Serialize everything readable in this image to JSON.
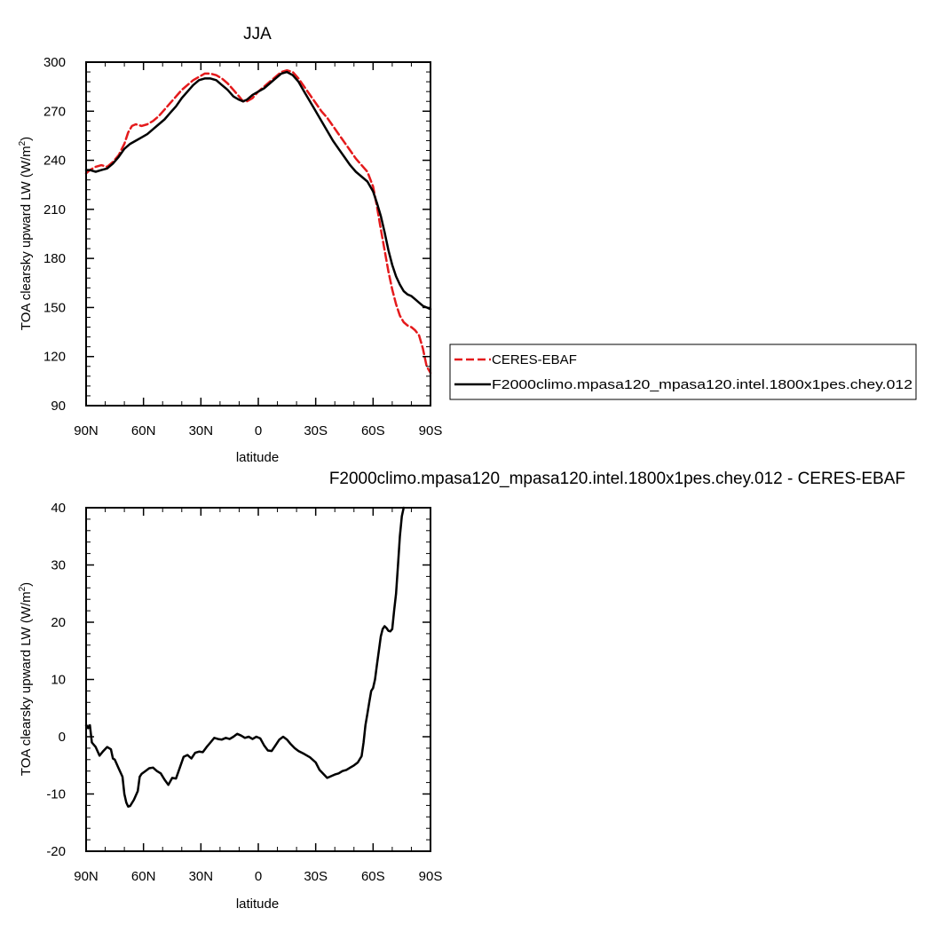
{
  "chart_data": [
    {
      "type": "line",
      "title": "JJA",
      "xlabel": "latitude",
      "ylabel": "TOA clearsky upward LW (W/m²)",
      "ylabel_parts": {
        "main": "TOA clearsky upward LW (W/m",
        "sup": "2",
        "close": ")"
      },
      "xlim": [
        90,
        -90
      ],
      "ylim": [
        90,
        300
      ],
      "x_ticks": [
        {
          "value": 90,
          "label": "90N"
        },
        {
          "value": 60,
          "label": "60N"
        },
        {
          "value": 30,
          "label": "30N"
        },
        {
          "value": 0,
          "label": "0"
        },
        {
          "value": -30,
          "label": "30S"
        },
        {
          "value": -60,
          "label": "60S"
        },
        {
          "value": -90,
          "label": "90S"
        }
      ],
      "y_ticks": [
        90,
        120,
        150,
        180,
        210,
        240,
        270,
        300
      ],
      "grid": false,
      "legend_position": "right",
      "series": [
        {
          "name": "CERES-EBAF",
          "color": "#e41a1c",
          "dash": "dashed",
          "points": [
            [
              90,
              232
            ],
            [
              88,
              234
            ],
            [
              85,
              236
            ],
            [
              82,
              237
            ],
            [
              79,
              236
            ],
            [
              76,
              239
            ],
            [
              73,
              243
            ],
            [
              70,
              250
            ],
            [
              68,
              257
            ],
            [
              66,
              261
            ],
            [
              64,
              262
            ],
            [
              61,
              261
            ],
            [
              58,
              262
            ],
            [
              55,
              264
            ],
            [
              52,
              267
            ],
            [
              49,
              271
            ],
            [
              46,
              275
            ],
            [
              43,
              279
            ],
            [
              40,
              283
            ],
            [
              37,
              286
            ],
            [
              34,
              289
            ],
            [
              31,
              291
            ],
            [
              28,
              293
            ],
            [
              25,
              293
            ],
            [
              22,
              292
            ],
            [
              19,
              290
            ],
            [
              16,
              287
            ],
            [
              13,
              283
            ],
            [
              10,
              279
            ],
            [
              8,
              276
            ],
            [
              6,
              276
            ],
            [
              3,
              278
            ],
            [
              0,
              282
            ],
            [
              -3,
              285
            ],
            [
              -6,
              288
            ],
            [
              -9,
              291
            ],
            [
              -12,
              294
            ],
            [
              -15,
              295
            ],
            [
              -18,
              294
            ],
            [
              -21,
              290
            ],
            [
              -24,
              285
            ],
            [
              -27,
              280
            ],
            [
              -30,
              275
            ],
            [
              -33,
              270
            ],
            [
              -36,
              266
            ],
            [
              -39,
              261
            ],
            [
              -42,
              256
            ],
            [
              -45,
              251
            ],
            [
              -48,
              246
            ],
            [
              -51,
              241
            ],
            [
              -54,
              237
            ],
            [
              -57,
              233
            ],
            [
              -60,
              224
            ],
            [
              -62,
              212
            ],
            [
              -64,
              198
            ],
            [
              -66,
              185
            ],
            [
              -68,
              172
            ],
            [
              -70,
              161
            ],
            [
              -72,
              152
            ],
            [
              -74,
              145
            ],
            [
              -76,
              141
            ],
            [
              -78,
              139
            ],
            [
              -80,
              138
            ],
            [
              -82,
              136
            ],
            [
              -84,
              133
            ],
            [
              -86,
              125
            ],
            [
              -88,
              114
            ],
            [
              -90,
              110
            ]
          ]
        },
        {
          "name": "F2000climo.mpasa120_mpasa120.intel.1800x1pes.chey.012",
          "color": "#000000",
          "dash": "solid",
          "points": [
            [
              90,
              234
            ],
            [
              88,
              234
            ],
            [
              85,
              233
            ],
            [
              82,
              234
            ],
            [
              79,
              235
            ],
            [
              76,
              238
            ],
            [
              73,
              242
            ],
            [
              70,
              247
            ],
            [
              67,
              250
            ],
            [
              64,
              252
            ],
            [
              61,
              254
            ],
            [
              58,
              256
            ],
            [
              55,
              259
            ],
            [
              52,
              262
            ],
            [
              49,
              265
            ],
            [
              46,
              269
            ],
            [
              43,
              273
            ],
            [
              40,
              278
            ],
            [
              37,
              282
            ],
            [
              34,
              286
            ],
            [
              31,
              289
            ],
            [
              28,
              290
            ],
            [
              25,
              290
            ],
            [
              22,
              289
            ],
            [
              19,
              286
            ],
            [
              16,
              283
            ],
            [
              13,
              279
            ],
            [
              10,
              277
            ],
            [
              8,
              276
            ],
            [
              6,
              277
            ],
            [
              3,
              280
            ],
            [
              0,
              282
            ],
            [
              -3,
              284
            ],
            [
              -6,
              287
            ],
            [
              -9,
              290
            ],
            [
              -12,
              293
            ],
            [
              -15,
              294
            ],
            [
              -18,
              292
            ],
            [
              -21,
              288
            ],
            [
              -24,
              282
            ],
            [
              -27,
              276
            ],
            [
              -30,
              270
            ],
            [
              -33,
              264
            ],
            [
              -36,
              258
            ],
            [
              -39,
              252
            ],
            [
              -42,
              247
            ],
            [
              -45,
              242
            ],
            [
              -48,
              237
            ],
            [
              -51,
              233
            ],
            [
              -54,
              230
            ],
            [
              -57,
              227
            ],
            [
              -60,
              221
            ],
            [
              -62,
              214
            ],
            [
              -64,
              206
            ],
            [
              -66,
              196
            ],
            [
              -68,
              185
            ],
            [
              -70,
              176
            ],
            [
              -72,
              169
            ],
            [
              -74,
              164
            ],
            [
              -76,
              160
            ],
            [
              -78,
              158
            ],
            [
              -80,
              157
            ],
            [
              -82,
              155
            ],
            [
              -84,
              153
            ],
            [
              -86,
              151
            ],
            [
              -88,
              150
            ],
            [
              -90,
              149
            ]
          ]
        }
      ]
    },
    {
      "type": "line",
      "title": "F2000climo.mpasa120_mpasa120.intel.1800x1pes.chey.012 - CERES-EBAF",
      "xlabel": "latitude",
      "ylabel": "TOA clearsky upward LW (W/m²)",
      "ylabel_parts": {
        "main": "TOA clearsky upward LW (W/m",
        "sup": "2",
        "close": ")"
      },
      "xlim": [
        90,
        -90
      ],
      "ylim": [
        -20,
        40
      ],
      "x_ticks": [
        {
          "value": 90,
          "label": "90N"
        },
        {
          "value": 60,
          "label": "60N"
        },
        {
          "value": 30,
          "label": "30N"
        },
        {
          "value": 0,
          "label": "0"
        },
        {
          "value": -30,
          "label": "30S"
        },
        {
          "value": -60,
          "label": "60S"
        },
        {
          "value": -90,
          "label": "90S"
        }
      ],
      "y_ticks": [
        -20,
        -10,
        0,
        10,
        20,
        30,
        40
      ],
      "grid": false,
      "series": [
        {
          "name": "",
          "color": "#000000",
          "dash": "solid",
          "points": [
            [
              90,
              2
            ],
            [
              89,
              1.5
            ],
            [
              88,
              2
            ],
            [
              87,
              -1
            ],
            [
              85,
              -1.8
            ],
            [
              83,
              -3.3
            ],
            [
              81,
              -2.5
            ],
            [
              79,
              -1.8
            ],
            [
              77,
              -2.2
            ],
            [
              76,
              -3.8
            ],
            [
              75,
              -4
            ],
            [
              73,
              -5.5
            ],
            [
              71,
              -7
            ],
            [
              70,
              -10
            ],
            [
              69,
              -11.5
            ],
            [
              68,
              -12.2
            ],
            [
              67,
              -12.1
            ],
            [
              65,
              -11
            ],
            [
              63,
              -9.5
            ],
            [
              62,
              -7
            ],
            [
              61,
              -6.5
            ],
            [
              59,
              -6
            ],
            [
              57,
              -5.5
            ],
            [
              55,
              -5.4
            ],
            [
              53,
              -6
            ],
            [
              51,
              -6.4
            ],
            [
              49,
              -7.5
            ],
            [
              47,
              -8.4
            ],
            [
              45,
              -7.2
            ],
            [
              43,
              -7.3
            ],
            [
              41,
              -5.4
            ],
            [
              39,
              -3.5
            ],
            [
              37,
              -3.2
            ],
            [
              35,
              -3.8
            ],
            [
              33,
              -2.8
            ],
            [
              31,
              -2.6
            ],
            [
              29,
              -2.7
            ],
            [
              27,
              -1.8
            ],
            [
              25,
              -1
            ],
            [
              23,
              -0.2
            ],
            [
              21,
              -0.4
            ],
            [
              19,
              -0.5
            ],
            [
              17,
              -0.2
            ],
            [
              15,
              -0.4
            ],
            [
              13,
              0
            ],
            [
              11,
              0.5
            ],
            [
              9,
              0.2
            ],
            [
              7,
              -0.2
            ],
            [
              5,
              0
            ],
            [
              3,
              -0.4
            ],
            [
              1,
              0
            ],
            [
              -1,
              -0.3
            ],
            [
              -3,
              -1.5
            ],
            [
              -5,
              -2.4
            ],
            [
              -7,
              -2.5
            ],
            [
              -9,
              -1.5
            ],
            [
              -11,
              -0.5
            ],
            [
              -13,
              0
            ],
            [
              -15,
              -0.5
            ],
            [
              -17,
              -1.3
            ],
            [
              -19,
              -2
            ],
            [
              -21,
              -2.5
            ],
            [
              -24,
              -3
            ],
            [
              -27,
              -3.6
            ],
            [
              -30,
              -4.5
            ],
            [
              -32,
              -5.8
            ],
            [
              -34,
              -6.5
            ],
            [
              -36,
              -7.2
            ],
            [
              -38,
              -6.9
            ],
            [
              -40,
              -6.6
            ],
            [
              -42,
              -6.4
            ],
            [
              -44,
              -6
            ],
            [
              -46,
              -5.8
            ],
            [
              -48,
              -5.4
            ],
            [
              -50,
              -5
            ],
            [
              -52,
              -4.5
            ],
            [
              -54,
              -3.4
            ],
            [
              -55,
              -1
            ],
            [
              -56,
              2
            ],
            [
              -57,
              4
            ],
            [
              -58,
              6
            ],
            [
              -59,
              8
            ],
            [
              -60,
              8.5
            ],
            [
              -61,
              10
            ],
            [
              -62,
              12.5
            ],
            [
              -63,
              15
            ],
            [
              -64,
              17.5
            ],
            [
              -65,
              18.8
            ],
            [
              -66,
              19.3
            ],
            [
              -67,
              19
            ],
            [
              -68,
              18.5
            ],
            [
              -69,
              18.4
            ],
            [
              -70,
              18.8
            ],
            [
              -71,
              22
            ],
            [
              -72,
              25
            ],
            [
              -73,
              30
            ],
            [
              -74,
              35
            ],
            [
              -75,
              38.5
            ],
            [
              -76,
              40
            ]
          ]
        }
      ]
    }
  ]
}
